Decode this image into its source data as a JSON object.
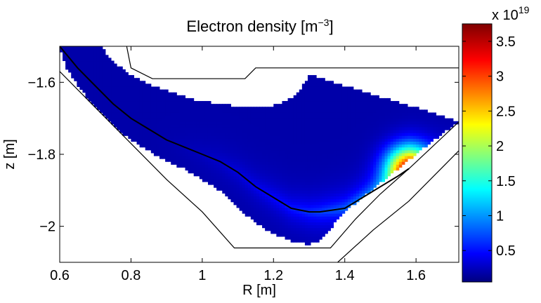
{
  "chart_data": {
    "type": "heatmap",
    "title": "Electron density [m",
    "title_exponent": "−3",
    "title_close": "]",
    "xlabel": "R [m]",
    "ylabel": "z [m]",
    "xlim": [
      0.6,
      1.72
    ],
    "ylim": [
      -2.1,
      -1.5
    ],
    "xticks": [
      0.6,
      0.8,
      1,
      1.2,
      1.4,
      1.6
    ],
    "xtick_labels": [
      "0.6",
      "0.8",
      "1",
      "1.2",
      "1.4",
      "1.6"
    ],
    "yticks": [
      -1.6,
      -1.8,
      -2
    ],
    "ytick_labels": [
      "−1.6",
      "−1.8",
      "−2"
    ],
    "colorbar": {
      "range": [
        0.05,
        3.75
      ],
      "ticks": [
        0.5,
        1,
        1.5,
        2,
        2.5,
        3,
        3.5
      ],
      "tick_labels": [
        "0.5",
        "1",
        "1.5",
        "2",
        "2.5",
        "3",
        "3.5"
      ],
      "multiplier_text": "x 10",
      "multiplier_exponent": "19",
      "colormap": "jet"
    },
    "plasma_region": {
      "outer_boundary": [
        [
          0.6,
          -1.5
        ],
        [
          0.62,
          -1.56
        ],
        [
          0.66,
          -1.62
        ],
        [
          0.7,
          -1.67
        ],
        [
          0.75,
          -1.72
        ],
        [
          0.8,
          -1.76
        ],
        [
          0.85,
          -1.79
        ],
        [
          0.9,
          -1.82
        ],
        [
          0.95,
          -1.84
        ],
        [
          1,
          -1.87
        ],
        [
          1.05,
          -1.9
        ],
        [
          1.1,
          -1.95
        ],
        [
          1.15,
          -1.99
        ],
        [
          1.2,
          -2.02
        ],
        [
          1.25,
          -2.04
        ],
        [
          1.3,
          -2.05
        ],
        [
          1.33,
          -2.04
        ],
        [
          1.4,
          -1.96
        ],
        [
          1.5,
          -1.88
        ],
        [
          1.55,
          -1.84
        ],
        [
          1.6,
          -1.8
        ],
        [
          1.65,
          -1.76
        ],
        [
          1.72,
          -1.71
        ]
      ],
      "inner_boundary": [
        [
          1.72,
          -1.71
        ],
        [
          1.66,
          -1.69
        ],
        [
          1.6,
          -1.67
        ],
        [
          1.5,
          -1.64
        ],
        [
          1.4,
          -1.61
        ],
        [
          1.34,
          -1.59
        ],
        [
          1.3,
          -1.58
        ],
        [
          1.27,
          -1.63
        ],
        [
          1.22,
          -1.66
        ],
        [
          1.17,
          -1.67
        ],
        [
          1.12,
          -1.67
        ],
        [
          1.05,
          -1.66
        ],
        [
          0.98,
          -1.65
        ],
        [
          0.92,
          -1.63
        ],
        [
          0.86,
          -1.61
        ],
        [
          0.8,
          -1.58
        ],
        [
          0.76,
          -1.55
        ],
        [
          0.73,
          -1.52
        ],
        [
          0.72,
          -1.5
        ]
      ],
      "background_density": 0.2,
      "peak_density": 3.75,
      "peak_location": [
        1.58,
        -1.84
      ]
    },
    "separatrix": [
      [
        0.6,
        -1.5
      ],
      [
        0.65,
        -1.56
      ],
      [
        0.7,
        -1.61
      ],
      [
        0.75,
        -1.66
      ],
      [
        0.8,
        -1.7
      ],
      [
        0.85,
        -1.73
      ],
      [
        0.9,
        -1.76
      ],
      [
        1,
        -1.8
      ],
      [
        1.05,
        -1.82
      ],
      [
        1.1,
        -1.85
      ],
      [
        1.15,
        -1.89
      ],
      [
        1.2,
        -1.92
      ],
      [
        1.25,
        -1.95
      ],
      [
        1.3,
        -1.96
      ],
      [
        1.33,
        -1.96
      ],
      [
        1.4,
        -1.95
      ],
      [
        1.45,
        -1.92
      ],
      [
        1.5,
        -1.89
      ],
      [
        1.55,
        -1.86
      ],
      [
        1.58,
        -1.84
      ]
    ],
    "wall_top": [
      [
        0.788,
        -1.5
      ],
      [
        0.8,
        -1.56
      ],
      [
        0.86,
        -1.59
      ],
      [
        1.12,
        -1.59
      ],
      [
        1.15,
        -1.56
      ],
      [
        1.72,
        -1.56
      ]
    ],
    "wall_bottom": [
      [
        0.6,
        -1.57
      ],
      [
        0.7,
        -1.67
      ],
      [
        0.8,
        -1.77
      ],
      [
        0.9,
        -1.87
      ],
      [
        1.0,
        -1.96
      ],
      [
        1.09,
        -2.06
      ],
      [
        1.36,
        -2.06
      ],
      [
        1.43,
        -1.98
      ],
      [
        1.5,
        -1.91
      ],
      [
        1.58,
        -1.84
      ],
      [
        1.72,
        -1.71
      ]
    ],
    "wall_lower_right": [
      [
        1.38,
        -2.1
      ],
      [
        1.48,
        -2.01
      ],
      [
        1.58,
        -1.93
      ],
      [
        1.72,
        -1.79
      ]
    ]
  }
}
